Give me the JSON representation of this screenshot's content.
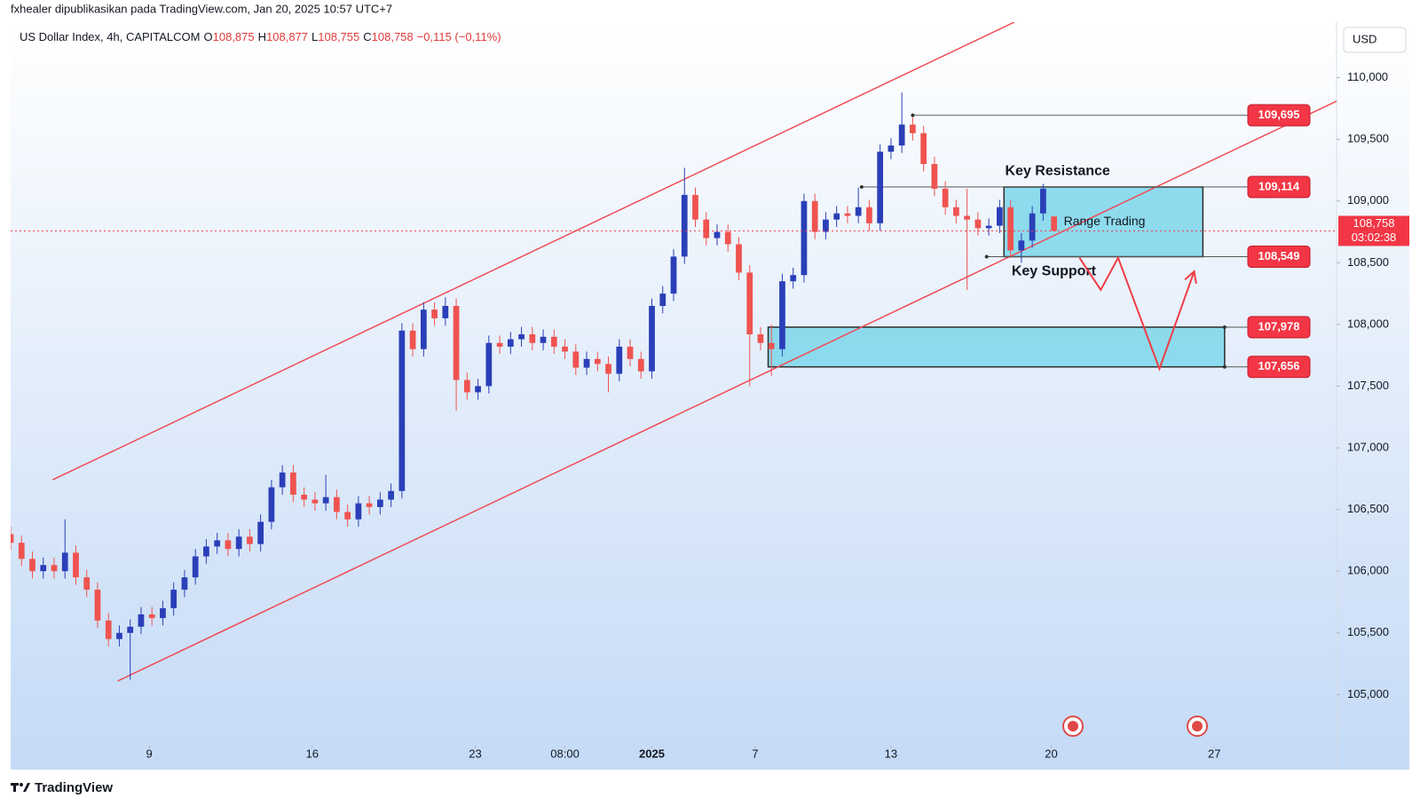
{
  "header": {
    "publisher": "fxhealer dipublikasikan pada TradingView.com, Jan 20, 2025 10:57 UTC+7",
    "brand": "TradingView"
  },
  "chart_data": {
    "type": "candlestick",
    "symbol": "US Dollar Index, 4h, CAPITALCOM",
    "ohlc_legend": [
      {
        "key": "O",
        "value": "108,875"
      },
      {
        "key": "H",
        "value": "108,877"
      },
      {
        "key": "L",
        "value": "108,755"
      },
      {
        "key": "C",
        "value": "108,758"
      }
    ],
    "change": "−0,115 (−0,11%)",
    "currency": "USD",
    "up_color": "#2a3fb8",
    "down_color": "#ef5350",
    "xlim": [
      0,
      122
    ],
    "ylim": [
      104.6,
      110.45
    ],
    "xticks": [
      {
        "value": 12.75,
        "label": "9"
      },
      {
        "value": 27.75,
        "label": "16"
      },
      {
        "value": 42.75,
        "label": "23"
      },
      {
        "value": 51,
        "label": "08:00"
      },
      {
        "value": 59,
        "label": "2025"
      },
      {
        "value": 68.5,
        "label": "7"
      },
      {
        "value": 81,
        "label": "13"
      },
      {
        "value": 95.75,
        "label": "20"
      },
      {
        "value": 110.75,
        "label": "27"
      }
    ],
    "yticks": [
      {
        "value": 105,
        "label": "105,000"
      },
      {
        "value": 105.5,
        "label": "105,500"
      },
      {
        "value": 106,
        "label": "106,000"
      },
      {
        "value": 106.5,
        "label": "106,500"
      },
      {
        "value": 107,
        "label": "107,000"
      },
      {
        "value": 107.5,
        "label": "107,500"
      },
      {
        "value": 108,
        "label": "108,000"
      },
      {
        "value": 108.5,
        "label": "108,500"
      },
      {
        "value": 109,
        "label": "109,000"
      },
      {
        "value": 109.5,
        "label": "109,500"
      },
      {
        "value": 110,
        "label": "110,000"
      }
    ],
    "ohlc": [
      [
        106.3,
        106.36,
        106.17,
        106.23
      ],
      [
        106.23,
        106.29,
        106.04,
        106.1
      ],
      [
        106.1,
        106.16,
        105.94,
        106.0
      ],
      [
        106.0,
        106.11,
        105.94,
        106.05
      ],
      [
        106.05,
        106.11,
        105.94,
        106.0
      ],
      [
        106.0,
        106.42,
        105.94,
        106.15
      ],
      [
        106.15,
        106.21,
        105.89,
        105.95
      ],
      [
        105.95,
        106.01,
        105.79,
        105.85
      ],
      [
        105.85,
        105.91,
        105.54,
        105.6
      ],
      [
        105.6,
        105.66,
        105.39,
        105.45
      ],
      [
        105.45,
        105.56,
        105.39,
        105.5
      ],
      [
        105.5,
        105.61,
        105.12,
        105.55
      ],
      [
        105.55,
        105.71,
        105.49,
        105.65
      ],
      [
        105.65,
        105.71,
        105.56,
        105.62
      ],
      [
        105.62,
        105.76,
        105.56,
        105.7
      ],
      [
        105.7,
        105.91,
        105.64,
        105.85
      ],
      [
        105.85,
        106.01,
        105.79,
        105.95
      ],
      [
        105.95,
        106.18,
        105.89,
        106.12
      ],
      [
        106.12,
        106.26,
        106.06,
        106.2
      ],
      [
        106.2,
        106.31,
        106.14,
        106.25
      ],
      [
        106.25,
        106.31,
        106.12,
        106.18
      ],
      [
        106.18,
        106.34,
        106.12,
        106.28
      ],
      [
        106.28,
        106.34,
        106.16,
        106.22
      ],
      [
        106.22,
        106.46,
        106.16,
        106.4
      ],
      [
        106.4,
        106.74,
        106.34,
        106.68
      ],
      [
        106.68,
        106.86,
        106.62,
        106.8
      ],
      [
        106.8,
        106.86,
        106.56,
        106.62
      ],
      [
        106.62,
        106.68,
        106.52,
        106.58
      ],
      [
        106.58,
        106.64,
        106.49,
        106.55
      ],
      [
        106.55,
        106.78,
        106.49,
        106.6
      ],
      [
        106.6,
        106.66,
        106.42,
        106.48
      ],
      [
        106.48,
        106.54,
        106.36,
        106.42
      ],
      [
        106.42,
        106.61,
        106.36,
        106.55
      ],
      [
        106.55,
        106.61,
        106.46,
        106.52
      ],
      [
        106.52,
        106.64,
        106.46,
        106.58
      ],
      [
        106.58,
        106.71,
        106.52,
        106.65
      ],
      [
        106.65,
        108.01,
        106.59,
        107.95
      ],
      [
        107.95,
        108.01,
        107.74,
        107.8
      ],
      [
        107.8,
        108.18,
        107.74,
        108.12
      ],
      [
        108.12,
        108.18,
        107.99,
        108.05
      ],
      [
        108.05,
        108.22,
        107.99,
        108.15
      ],
      [
        108.15,
        108.21,
        107.3,
        107.55
      ],
      [
        107.55,
        107.61,
        107.39,
        107.45
      ],
      [
        107.45,
        107.56,
        107.39,
        107.5
      ],
      [
        107.5,
        107.91,
        107.44,
        107.85
      ],
      [
        107.85,
        107.91,
        107.76,
        107.82
      ],
      [
        107.82,
        107.94,
        107.76,
        107.88
      ],
      [
        107.88,
        107.98,
        107.82,
        107.92
      ],
      [
        107.92,
        107.98,
        107.79,
        107.85
      ],
      [
        107.85,
        107.96,
        107.79,
        107.9
      ],
      [
        107.9,
        107.96,
        107.76,
        107.82
      ],
      [
        107.82,
        107.88,
        107.72,
        107.78
      ],
      [
        107.78,
        107.84,
        107.59,
        107.65
      ],
      [
        107.65,
        107.78,
        107.59,
        107.72
      ],
      [
        107.72,
        107.78,
        107.62,
        107.68
      ],
      [
        107.68,
        107.74,
        107.45,
        107.6
      ],
      [
        107.6,
        107.88,
        107.54,
        107.82
      ],
      [
        107.82,
        107.88,
        107.66,
        107.72
      ],
      [
        107.72,
        107.78,
        107.56,
        107.62
      ],
      [
        107.62,
        108.21,
        107.56,
        108.15
      ],
      [
        108.15,
        108.31,
        108.09,
        108.25
      ],
      [
        108.25,
        108.61,
        108.19,
        108.55
      ],
      [
        108.55,
        109.27,
        108.49,
        109.05
      ],
      [
        109.05,
        109.11,
        108.79,
        108.85
      ],
      [
        108.85,
        108.91,
        108.64,
        108.7
      ],
      [
        108.7,
        108.81,
        108.64,
        108.75
      ],
      [
        108.75,
        108.81,
        108.59,
        108.65
      ],
      [
        108.65,
        108.71,
        108.36,
        108.42
      ],
      [
        108.42,
        108.48,
        107.5,
        107.92
      ],
      [
        107.92,
        107.98,
        107.79,
        107.85
      ],
      [
        107.85,
        108.0,
        107.58,
        107.8
      ],
      [
        107.8,
        108.41,
        107.74,
        108.35
      ],
      [
        108.35,
        108.46,
        108.29,
        108.4
      ],
      [
        108.4,
        109.06,
        108.34,
        109.0
      ],
      [
        109.0,
        109.06,
        108.69,
        108.75
      ],
      [
        108.75,
        108.91,
        108.69,
        108.85
      ],
      [
        108.85,
        108.96,
        108.79,
        108.9
      ],
      [
        108.9,
        108.96,
        108.82,
        108.88
      ],
      [
        108.88,
        109.11,
        108.82,
        108.95
      ],
      [
        108.95,
        109.01,
        108.76,
        108.82
      ],
      [
        108.82,
        109.46,
        108.76,
        109.4
      ],
      [
        109.4,
        109.51,
        109.34,
        109.45
      ],
      [
        109.45,
        109.88,
        109.39,
        109.62
      ],
      [
        109.62,
        109.68,
        109.49,
        109.55
      ],
      [
        109.55,
        109.61,
        109.24,
        109.3
      ],
      [
        109.3,
        109.36,
        109.04,
        109.1
      ],
      [
        109.1,
        109.16,
        108.89,
        108.95
      ],
      [
        108.95,
        109.01,
        108.82,
        108.88
      ],
      [
        108.88,
        109.1,
        108.28,
        108.85
      ],
      [
        108.85,
        108.91,
        108.72,
        108.78
      ],
      [
        108.78,
        108.86,
        108.72,
        108.8
      ],
      [
        108.8,
        109.01,
        108.74,
        108.95
      ],
      [
        108.95,
        109.01,
        108.54,
        108.6
      ],
      [
        108.6,
        108.74,
        108.5,
        108.68
      ],
      [
        108.68,
        108.96,
        108.62,
        108.9
      ],
      [
        108.9,
        109.14,
        108.84,
        109.1
      ],
      [
        108.875,
        108.877,
        108.755,
        108.758
      ]
    ],
    "last_price": {
      "value": 108.758,
      "label": "108,758",
      "countdown": "03:02:38"
    },
    "channel": [
      {
        "x": [
          3.85,
          92.35
        ],
        "y": [
          106.74,
          110.45
        ]
      },
      {
        "x": [
          9.85,
          122
        ],
        "y": [
          105.11,
          109.81
        ]
      }
    ],
    "zones": [
      {
        "x0": 91.4,
        "x1": 109.7,
        "bottom": 108.549,
        "top": 109.114
      },
      {
        "x0": 69.7,
        "x1": 111.7,
        "bottom": 107.656,
        "top": 107.978
      }
    ],
    "levels": [
      {
        "value": 109.695,
        "label": "109,695",
        "start": 83
      },
      {
        "value": 109.114,
        "label": "109,114",
        "start": 78.3
      },
      {
        "value": 108.549,
        "label": "108,549",
        "start": 89.8
      },
      {
        "value": 107.978,
        "label": "107,978",
        "start": 111.7
      },
      {
        "value": 107.656,
        "label": "107,656",
        "start": 111.7
      }
    ],
    "annotations": [
      {
        "text": "Key Resistance",
        "x": 91.5,
        "y": 109.24
      },
      {
        "text": "Key Support",
        "x": 92.1,
        "y": 108.43
      },
      {
        "text": "Range Trading",
        "x": 96.9,
        "y": 108.83
      }
    ],
    "projection": {
      "x": [
        98.35,
        100.3,
        101.9,
        105.7,
        108.9
      ],
      "y": [
        108.54,
        108.28,
        108.54,
        107.64,
        108.43
      ],
      "color": "#ef3b45"
    }
  }
}
